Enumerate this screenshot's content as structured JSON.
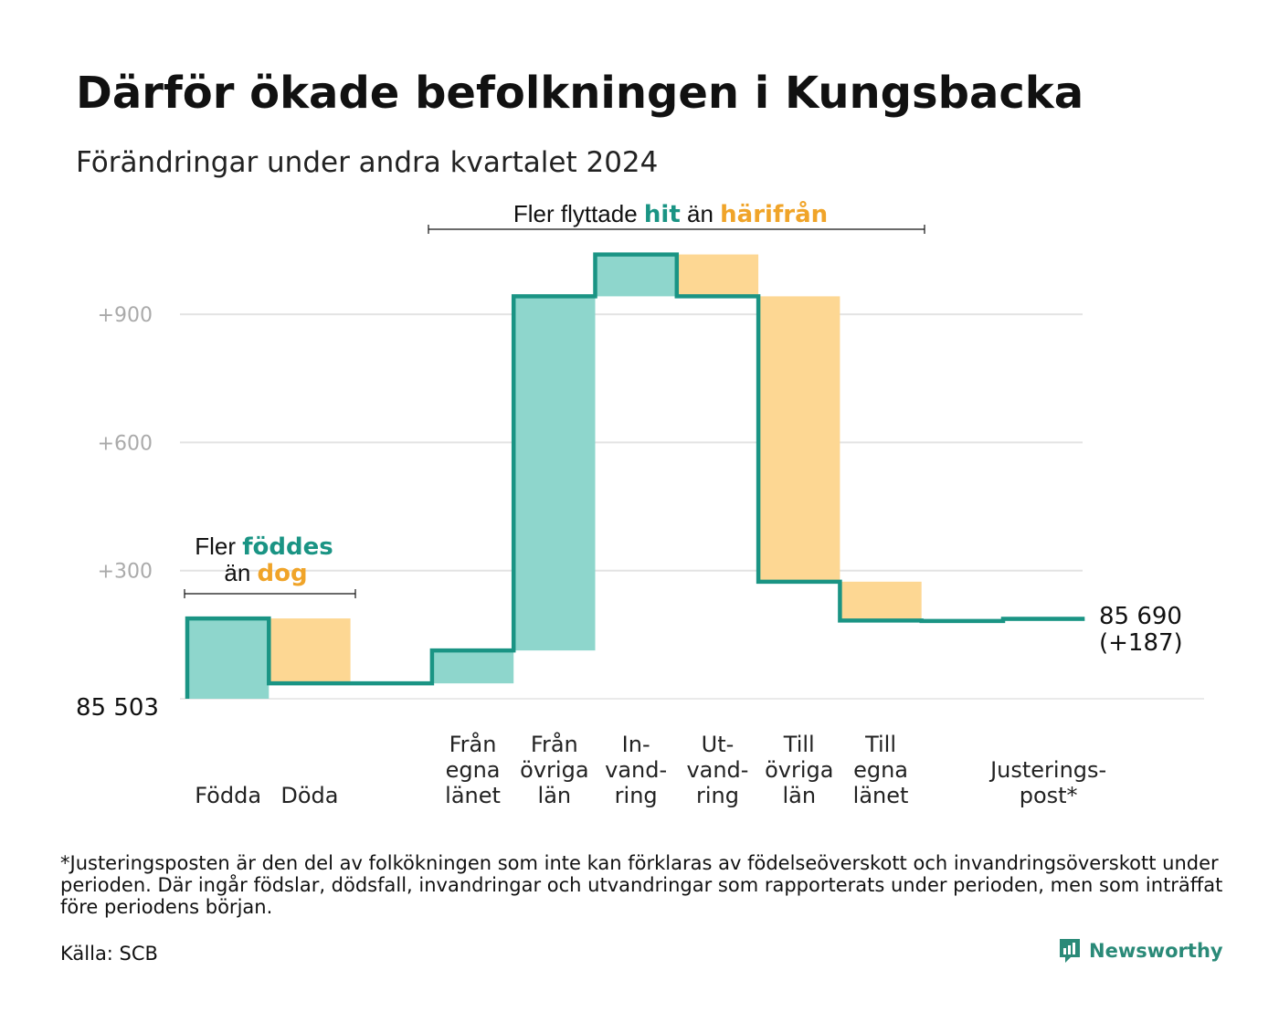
{
  "title": "Därför ökade befolkningen i Kungsbacka",
  "subtitle": "Förändringar under andra kvartalet 2024",
  "colors": {
    "increase": "#8ed6cc",
    "decrease": "#fdd793",
    "line": "#1a9484",
    "increase_text": "#1a9484",
    "decrease_text": "#f0a429",
    "grid": "#e3e3e3"
  },
  "chart_data": {
    "type": "bar",
    "subtype": "waterfall",
    "base": 85503,
    "base_label": "85  503",
    "end_label": "85 690",
    "end_change_label": "(+187)",
    "yticks": [
      {
        "value": 300,
        "label": "+300"
      },
      {
        "value": 600,
        "label": "+600"
      },
      {
        "value": 900,
        "label": "+900"
      }
    ],
    "ylim": [
      0,
      1060
    ],
    "grid": true,
    "steps": [
      {
        "label_lines": [
          "Födda"
        ],
        "delta": 188
      },
      {
        "label_lines": [
          "Döda"
        ],
        "delta": -152
      },
      {
        "label_lines": [
          ""
        ],
        "delta": 0
      },
      {
        "label_lines": [
          "Från",
          "egna",
          "länet"
        ],
        "delta": 77
      },
      {
        "label_lines": [
          "Från",
          "övriga",
          "län"
        ],
        "delta": 829
      },
      {
        "label_lines": [
          "In-",
          "vand-",
          "ring"
        ],
        "delta": 98
      },
      {
        "label_lines": [
          "Ut-",
          "vand-",
          "ring"
        ],
        "delta": -98
      },
      {
        "label_lines": [
          "Till",
          "övriga",
          "län"
        ],
        "delta": -668
      },
      {
        "label_lines": [
          "Till",
          "egna",
          "länet"
        ],
        "delta": -91
      },
      {
        "label_lines": [
          ""
        ],
        "delta": -1
      },
      {
        "label_lines": [
          "Justerings-",
          "post*"
        ],
        "delta": 5
      }
    ],
    "annotations": [
      {
        "parts": [
          {
            "text": "Fler ",
            "style": "normal"
          },
          {
            "text": "föddes",
            "style": "increase"
          }
        ],
        "parts2": [
          {
            "text": "än ",
            "style": "normal"
          },
          {
            "text": "dog",
            "style": "decrease"
          }
        ]
      },
      {
        "parts": [
          {
            "text": "Fler flyttade ",
            "style": "normal"
          },
          {
            "text": "hit",
            "style": "increase"
          },
          {
            "text": "  än ",
            "style": "normal"
          },
          {
            "text": "härifrån",
            "style": "decrease"
          }
        ]
      }
    ]
  },
  "footnote": "*Justeringsposten är den del av folkökningen som inte kan förklaras av födelseöverskott och invandringsöverskott under perioden. Där ingår födslar, dödsfall, invandringar och utvandringar som rapporterats under perioden, men som inträffat före periodens början.",
  "source": "Källa: SCB",
  "logo": {
    "text": "Newsworthy",
    "icon": "newsworthy-chart-icon"
  }
}
